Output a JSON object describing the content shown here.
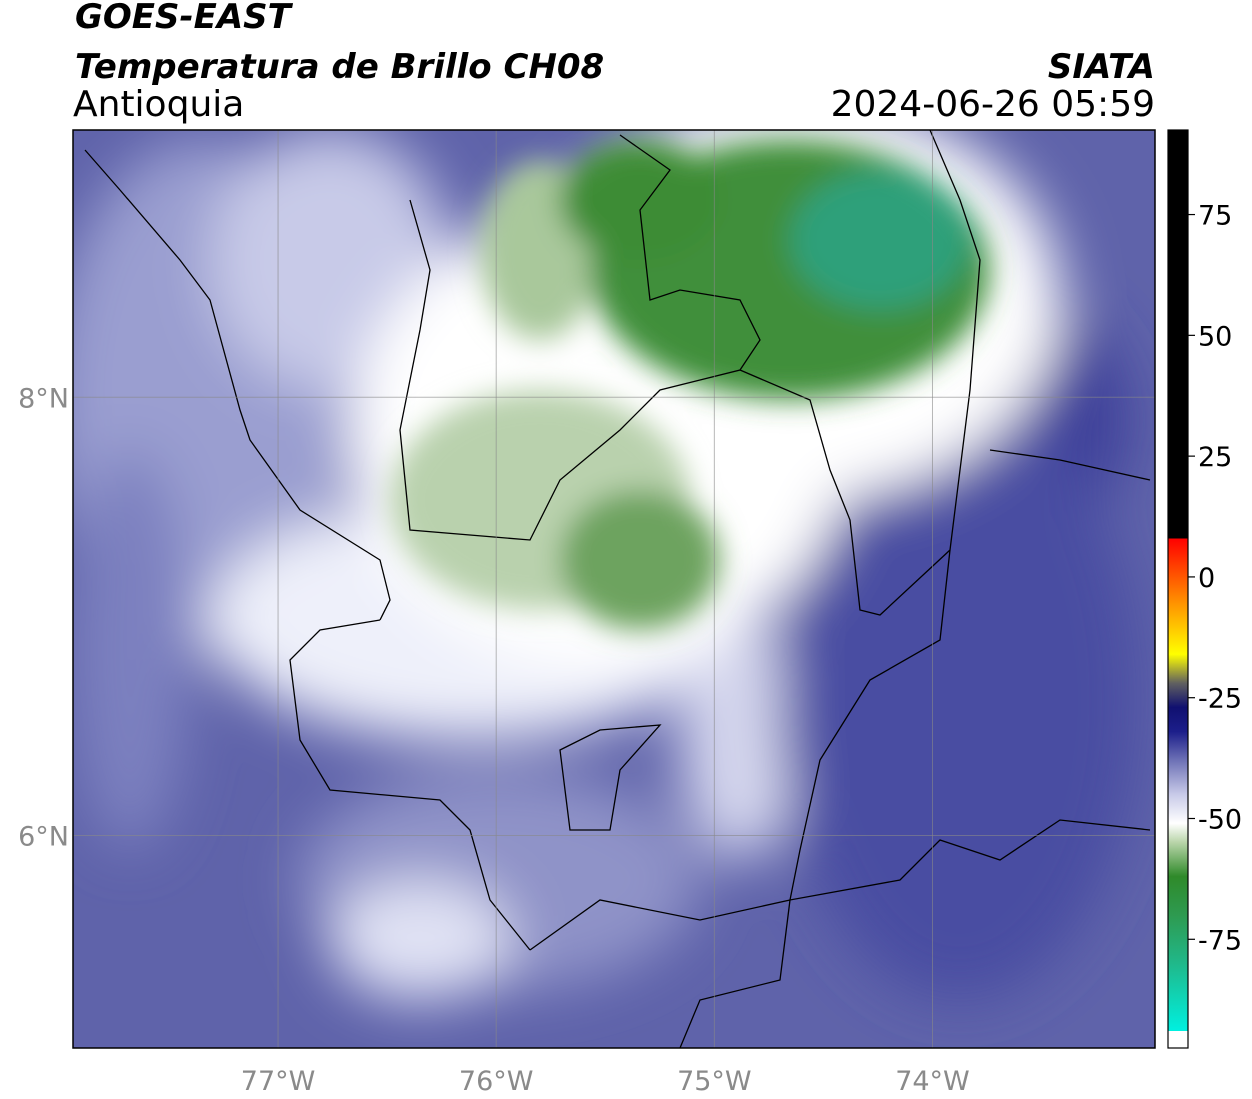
{
  "header": {
    "title": "GOES-EAST",
    "subtitle": "Temperatura de Brillo CH08",
    "source": "SIATA",
    "region": "Antioquia",
    "datetime": "2024-06-26 05:59"
  },
  "map": {
    "lon_range": [
      -77.94,
      -72.98
    ],
    "lat_range": [
      5.03,
      9.22
    ],
    "lon_ticks": [
      {
        "value": -77,
        "label": "77°W"
      },
      {
        "value": -76,
        "label": "76°W"
      },
      {
        "value": -75,
        "label": "75°W"
      },
      {
        "value": -74,
        "label": "74°W"
      }
    ],
    "lat_ticks": [
      {
        "value": 8,
        "label": "8°N"
      },
      {
        "value": 6,
        "label": "6°N"
      }
    ]
  },
  "colorbar": {
    "range": [
      -97.5,
      92.5
    ],
    "ticks": [
      75,
      50,
      25,
      0,
      -25,
      -50,
      -75
    ],
    "stops": [
      {
        "value": -97.5,
        "color": "#ffffff"
      },
      {
        "value": -94,
        "color": "#ffffff"
      },
      {
        "value": -94,
        "color": "#00f0e0"
      },
      {
        "value": -80,
        "color": "#20b88a"
      },
      {
        "value": -70,
        "color": "#2e9a50"
      },
      {
        "value": -62,
        "color": "#2f8a2a"
      },
      {
        "value": -55,
        "color": "#b8d4a8"
      },
      {
        "value": -51,
        "color": "#ffffff"
      },
      {
        "value": -45,
        "color": "#c8cae8"
      },
      {
        "value": -38,
        "color": "#6e72b6"
      },
      {
        "value": -32,
        "color": "#1c1e8a"
      },
      {
        "value": -27,
        "color": "#101070"
      },
      {
        "value": -22,
        "color": "#606060"
      },
      {
        "value": -16,
        "color": "#ffff00"
      },
      {
        "value": -6,
        "color": "#ff9900"
      },
      {
        "value": 8,
        "color": "#ff0000"
      },
      {
        "value": 8,
        "color": "#000000"
      },
      {
        "value": 92.5,
        "color": "#000000"
      }
    ]
  }
}
